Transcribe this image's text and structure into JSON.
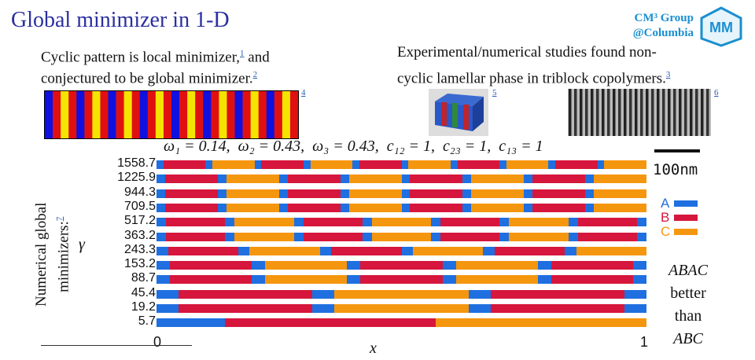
{
  "title": "Global minimizer in 1-D",
  "left_text": {
    "line1": "Cyclic pattern is local minimizer,",
    "ref1": "1",
    "line1_end": " and",
    "line2": "conjectured to be global minimizer.",
    "ref2": "2"
  },
  "right_text": {
    "line1": "Experimental/numerical studies found non-",
    "line2": "cyclic lamellar phase in triblock copolymers.",
    "ref3": "3"
  },
  "group": {
    "line1": "CM³ Group",
    "line2": "@Columbia"
  },
  "figure_refs": {
    "stripes": "4",
    "cube": "5",
    "tem": "6"
  },
  "colors": {
    "A": "#1f6fe0",
    "B": "#d6163c",
    "C": "#f5960f",
    "blue": "#1010e0",
    "red": "#e01010",
    "yellow": "#f5e400"
  },
  "params": {
    "w1": "ω₁ = 0.14,",
    "w2": "ω₂ = 0.43,",
    "w3": "ω₃ = 0.43,",
    "c12": "c₁₂ = 1,",
    "c23": "c₂₃ = 1,",
    "c13": "c₁₃ = 1"
  },
  "scale_label": "100nm",
  "legend": [
    "A",
    "B",
    "C"
  ],
  "y_title": {
    "line1": "Numerical global",
    "line2": "minimizers:",
    "ref": "7",
    "gamma": "γ"
  },
  "x_axis": {
    "min": "0",
    "max": "1",
    "label": "x"
  },
  "note": {
    "line1": "ABAC",
    "line2": "better",
    "line3": "than",
    "line4": "ABC"
  },
  "chart_data": {
    "type": "bar",
    "xlabel": "x",
    "ylabel": "γ",
    "xlim": [
      0,
      1
    ],
    "rows": [
      {
        "gamma": "1558.7",
        "pattern": "ABAC",
        "periods": 5
      },
      {
        "gamma": "1225.9",
        "pattern": "ABAC",
        "periods": 4
      },
      {
        "gamma": "944.3",
        "pattern": "ABAC",
        "periods": 4
      },
      {
        "gamma": "709.5",
        "pattern": "ABAC",
        "periods": 4
      },
      {
        "gamma": "517.2",
        "pattern": "ABAC",
        "periods": 3.5
      },
      {
        "gamma": "363.2",
        "pattern": "ABAC",
        "periods": 3.5
      },
      {
        "gamma": "243.3",
        "pattern": "ABAC",
        "periods": 3
      },
      {
        "gamma": "153.2",
        "pattern": "ABAC",
        "periods": 2.5
      },
      {
        "gamma": "88.7",
        "pattern": "ABAC",
        "periods": 2.5
      },
      {
        "gamma": "45.4",
        "pattern": "ABAC",
        "periods": 1.5
      },
      {
        "gamma": "19.2",
        "pattern": "ABAC",
        "periods": 1.5
      },
      {
        "gamma": "5.7",
        "pattern": "ABC",
        "periods": 1
      }
    ]
  }
}
